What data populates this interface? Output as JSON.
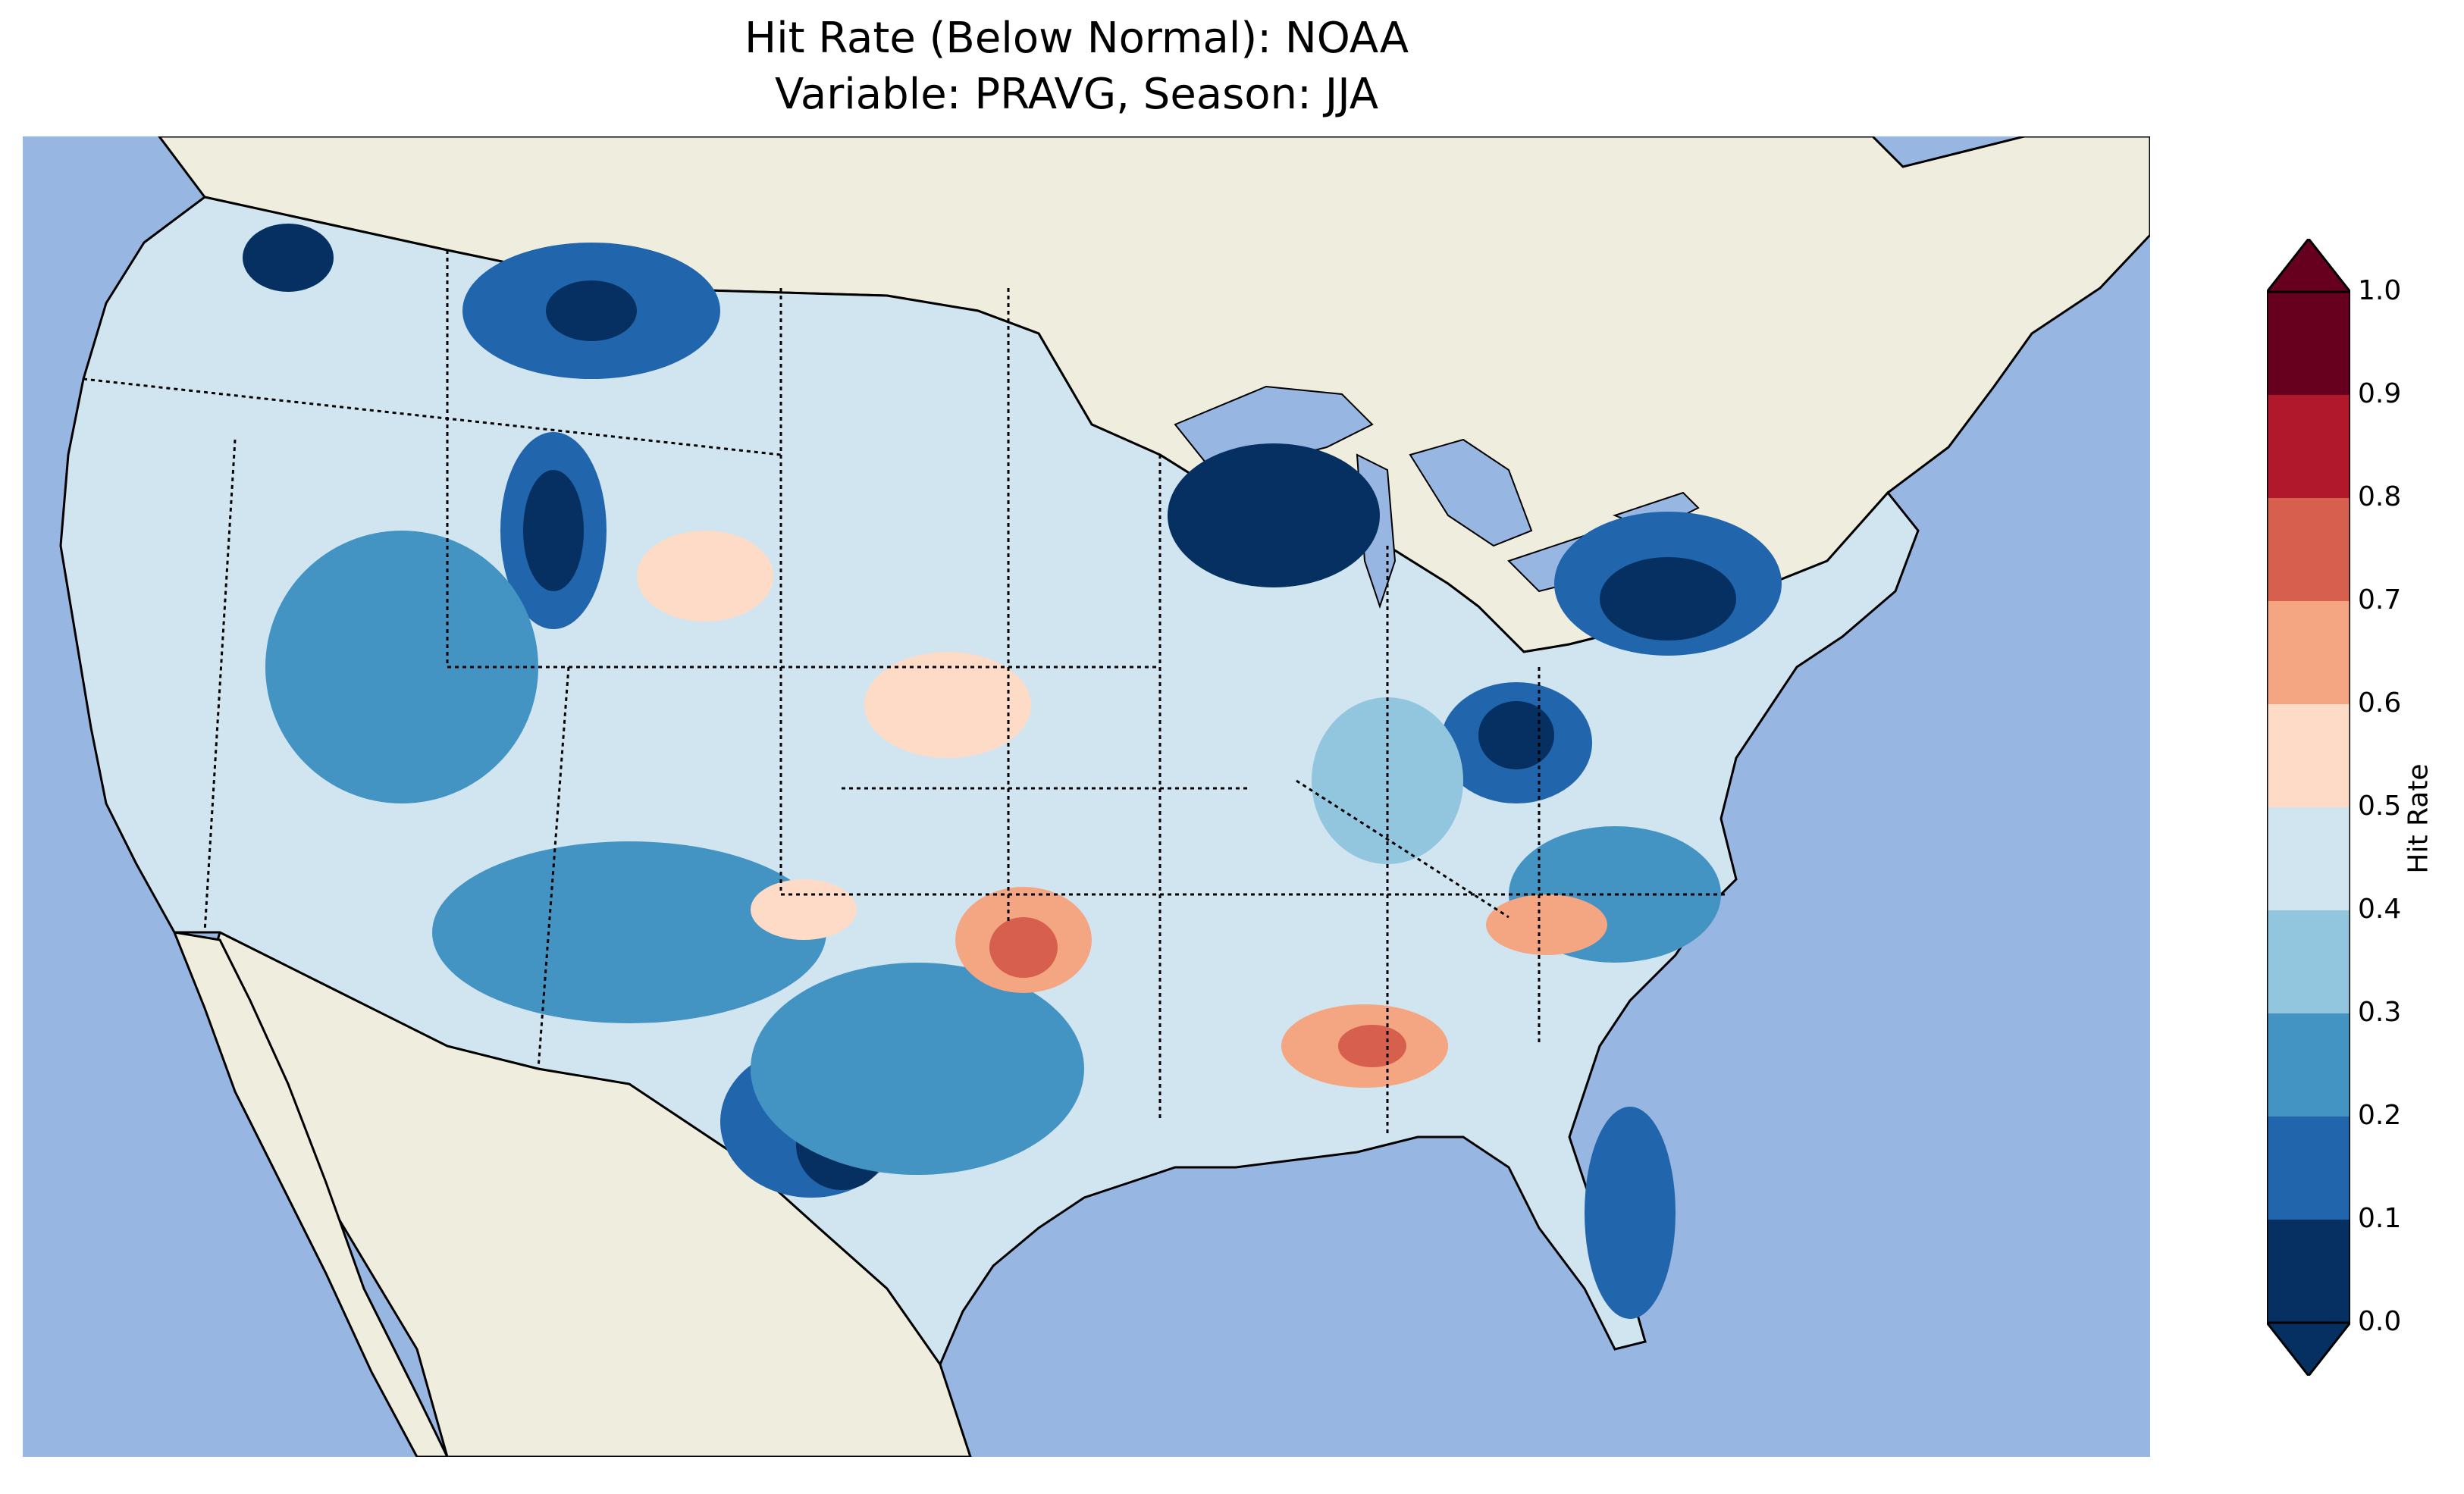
{
  "title_line1": "Hit Rate (Below Normal): NOAA",
  "title_line2": "Variable: PRAVG, Season: JJA",
  "colorbar": {
    "label": "Hit Rate",
    "ticks": [
      "0.0",
      "0.1",
      "0.2",
      "0.3",
      "0.4",
      "0.5",
      "0.6",
      "0.7",
      "0.8",
      "0.9",
      "1.0"
    ],
    "colors": [
      "#053061",
      "#2166ac",
      "#4393c3",
      "#92c5de",
      "#d1e5f0",
      "#fddbc7",
      "#f4a582",
      "#d6604d",
      "#b2182b",
      "#67001f"
    ],
    "extend": "both"
  },
  "map": {
    "ocean_color": "#97b6e1",
    "land_color": "#efedde",
    "region": "Contiguous United States",
    "hotspots": [
      {
        "region": "Oklahoma",
        "value": 0.72
      },
      {
        "region": "Central Alabama",
        "value": 0.74
      },
      {
        "region": "Northern Georgia / Carolinas border",
        "value": 0.65
      },
      {
        "region": "Nebraska",
        "value": 0.58
      }
    ],
    "low_spots": [
      {
        "region": "Wisconsin / Upper Michigan",
        "value": 0.05
      },
      {
        "region": "Pennsylvania",
        "value": 0.06
      },
      {
        "region": "Utah / Idaho",
        "value": 0.07
      },
      {
        "region": "Kentucky / West Virginia",
        "value": 0.08
      },
      {
        "region": "South Texas",
        "value": 0.07
      },
      {
        "region": "Washington",
        "value": 0.06
      },
      {
        "region": "Florida peninsula",
        "value": 0.09
      }
    ]
  }
}
